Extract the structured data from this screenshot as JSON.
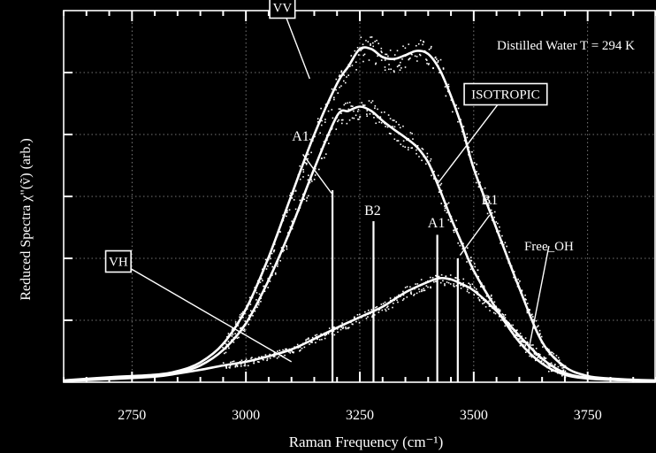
{
  "chart_data": {
    "type": "line",
    "xlabel": "Raman Frequency  (cm⁻¹)",
    "ylabel": "Reduced Spectra χ\"(ṽ)   (arb.)",
    "annotation": "Distilled Water   T = 294 K",
    "xlim": [
      2600,
      3900
    ],
    "ylim": [
      0,
      6
    ],
    "x_ticks": [
      2750,
      3000,
      3250,
      3500,
      3750
    ],
    "x_tick_labels": [
      "2750",
      "3000",
      "3250",
      "3500",
      "3750"
    ],
    "y_ticks": [
      0,
      1,
      2,
      3,
      4,
      5,
      6
    ],
    "grid": true,
    "series": [
      {
        "name": "VV",
        "x": [
          2600,
          2700,
          2800,
          2850,
          2900,
          2950,
          3000,
          3050,
          3100,
          3150,
          3200,
          3225,
          3250,
          3275,
          3300,
          3325,
          3350,
          3375,
          3400,
          3425,
          3450,
          3475,
          3500,
          3550,
          3600,
          3650,
          3700,
          3750,
          3800,
          3850,
          3900
        ],
        "values": [
          0.03,
          0.08,
          0.12,
          0.18,
          0.32,
          0.62,
          1.18,
          2.02,
          3.02,
          4.0,
          4.82,
          5.1,
          5.38,
          5.38,
          5.25,
          5.22,
          5.28,
          5.35,
          5.3,
          5.05,
          4.62,
          4.1,
          3.45,
          2.48,
          1.52,
          0.65,
          0.25,
          0.1,
          0.06,
          0.04,
          0.03
        ]
      },
      {
        "name": "ISOTROPIC",
        "x": [
          2600,
          2700,
          2800,
          2850,
          2900,
          2950,
          3000,
          3050,
          3100,
          3150,
          3200,
          3225,
          3250,
          3275,
          3300,
          3325,
          3350,
          3375,
          3400,
          3425,
          3450,
          3475,
          3500,
          3550,
          3600,
          3650,
          3700,
          3750,
          3800,
          3850,
          3900
        ],
        "values": [
          0.02,
          0.07,
          0.1,
          0.15,
          0.27,
          0.52,
          0.95,
          1.65,
          2.5,
          3.45,
          4.3,
          4.38,
          4.45,
          4.38,
          4.22,
          4.08,
          3.95,
          3.8,
          3.55,
          3.12,
          2.65,
          2.22,
          1.8,
          1.18,
          0.65,
          0.3,
          0.12,
          0.06,
          0.04,
          0.03,
          0.02
        ]
      },
      {
        "name": "VH",
        "x": [
          2600,
          2700,
          2800,
          2850,
          2900,
          2950,
          3000,
          3050,
          3100,
          3150,
          3200,
          3250,
          3300,
          3350,
          3400,
          3425,
          3450,
          3475,
          3500,
          3550,
          3600,
          3650,
          3700,
          3750,
          3800,
          3850,
          3900
        ],
        "values": [
          0.02,
          0.05,
          0.09,
          0.14,
          0.2,
          0.27,
          0.33,
          0.42,
          0.53,
          0.7,
          0.88,
          1.05,
          1.22,
          1.45,
          1.62,
          1.68,
          1.66,
          1.58,
          1.48,
          1.15,
          0.75,
          0.38,
          0.15,
          0.07,
          0.04,
          0.03,
          0.02
        ]
      }
    ],
    "series_labels": [
      {
        "text": "VV",
        "boxed": true,
        "label_at": [
          3080,
          6.05
        ],
        "target": [
          3140,
          4.9
        ]
      },
      {
        "text": "ISOTROPIC",
        "boxed": true,
        "label_at": [
          3570,
          4.65
        ],
        "target": [
          3420,
          3.2
        ]
      },
      {
        "text": "VH",
        "boxed": true,
        "label_at": [
          2720,
          1.95
        ],
        "target": [
          3100,
          0.33
        ]
      },
      {
        "text": "Free_OH",
        "boxed": false,
        "label_at": [
          3665,
          2.2
        ],
        "target": [
          3620,
          0.5
        ]
      }
    ],
    "bands": [
      {
        "label": "A1",
        "x": 3190,
        "height": 3.1,
        "label_at": [
          3120,
          3.9
        ],
        "leader_from": [
          3125,
          3.68
        ],
        "leader_to": [
          3188,
          3.05
        ]
      },
      {
        "label": "B2",
        "x": 3280,
        "height": 2.6,
        "label_at": [
          3278,
          2.7
        ]
      },
      {
        "label": "A1",
        "x": 3420,
        "height": 2.38,
        "label_at": [
          3418,
          2.5
        ]
      },
      {
        "label": "B1",
        "x": 3465,
        "height": 2.0,
        "label_at": [
          3535,
          2.87
        ],
        "leader_from": [
          3535,
          2.7
        ],
        "leader_to": [
          3470,
          2.05
        ]
      }
    ]
  }
}
